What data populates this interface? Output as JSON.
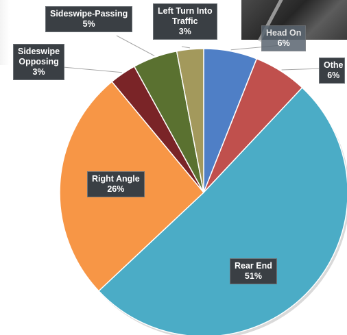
{
  "chart_data": {
    "type": "pie",
    "title": "",
    "slices": [
      {
        "label": "Head On",
        "value": 6,
        "pct": "6%",
        "color": "#4f7fc6"
      },
      {
        "label": "Other",
        "value": 6,
        "pct": "6%",
        "color": "#c0504d"
      },
      {
        "label": "Rear End",
        "value": 51,
        "pct": "51%",
        "color": "#4bacc6"
      },
      {
        "label": "Right Angle",
        "value": 26,
        "pct": "26%",
        "color": "#f79646"
      },
      {
        "label": "Sideswipe Opposing",
        "value": 3,
        "pct": "3%",
        "color": "#7a2427"
      },
      {
        "label": "Sideswipe-Passing",
        "value": 5,
        "pct": "5%",
        "color": "#5a7130"
      },
      {
        "label": "Left Turn Into Traffic",
        "value": 3,
        "pct": "3%",
        "color": "#a3995c"
      }
    ],
    "label_lines": {
      "Head On": [
        "Head On"
      ],
      "Other": [
        "Othe"
      ],
      "Rear End": [
        "Rear End"
      ],
      "Right Angle": [
        "Right Angle"
      ],
      "Sideswipe Opposing": [
        "Sideswipe",
        "Opposing"
      ],
      "Sideswipe-Passing": [
        "Sideswipe-Passing"
      ],
      "Left Turn Into Traffic": [
        "Left Turn Into",
        "Traffic"
      ]
    }
  }
}
